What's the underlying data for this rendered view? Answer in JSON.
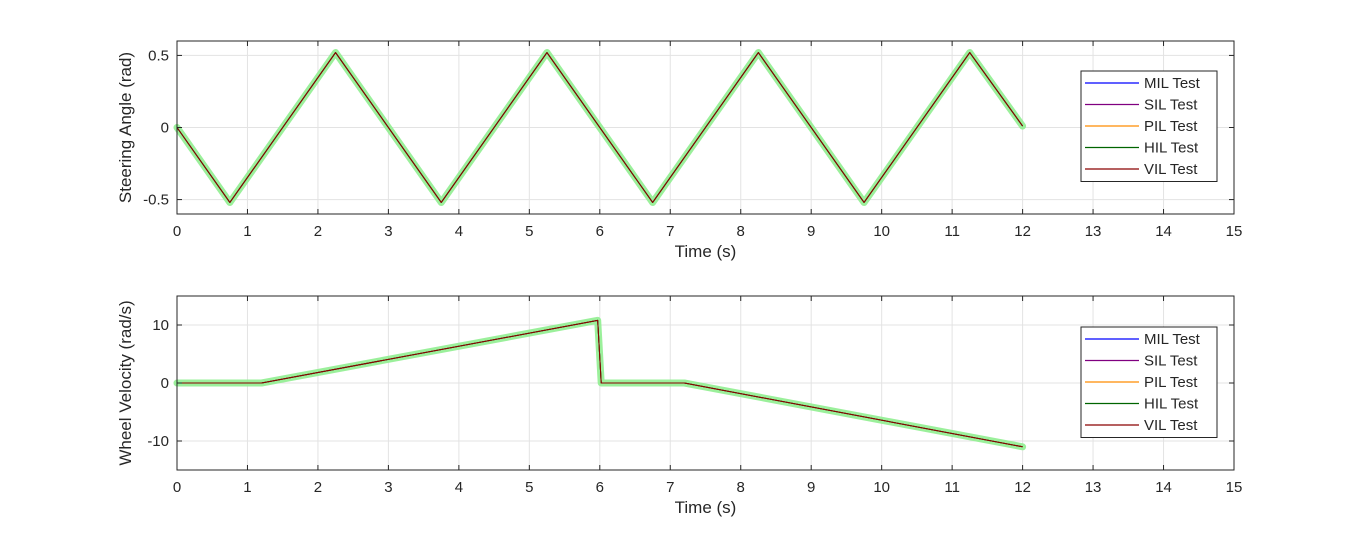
{
  "chart_data": [
    {
      "type": "line",
      "xlabel": "Time (s)",
      "ylabel": "Steering Angle (rad)",
      "xlim": [
        0,
        15
      ],
      "ylim": [
        -0.6,
        0.6
      ],
      "xticks": [
        0,
        1,
        2,
        3,
        4,
        5,
        6,
        7,
        8,
        9,
        10,
        11,
        12,
        13,
        14,
        15
      ],
      "xtick_labels": [
        "0",
        "1",
        "2",
        "3",
        "4",
        "5",
        "6",
        "7",
        "8",
        "9",
        "10",
        "11",
        "12",
        "13",
        "14",
        "15"
      ],
      "yticks": [
        -0.5,
        0,
        0.5
      ],
      "ytick_labels": [
        "-0.5",
        "0",
        "0.5"
      ],
      "grid": true,
      "legend_position": "right",
      "reference_band_color": "#90ee90",
      "x": [
        0,
        0.75,
        2.25,
        3.75,
        5.25,
        6.75,
        8.25,
        9.75,
        11.25,
        12
      ],
      "series": [
        {
          "name": "MIL Test",
          "color": "#0000ff",
          "values": [
            0,
            -0.52,
            0.52,
            -0.52,
            0.52,
            -0.52,
            0.52,
            -0.52,
            0.52,
            0.01
          ]
        },
        {
          "name": "SIL Test",
          "color": "#800080",
          "values": [
            0,
            -0.52,
            0.52,
            -0.52,
            0.52,
            -0.52,
            0.52,
            -0.52,
            0.52,
            0.01
          ]
        },
        {
          "name": "PIL Test",
          "color": "#ff8c00",
          "values": [
            0,
            -0.52,
            0.52,
            -0.52,
            0.52,
            -0.52,
            0.52,
            -0.52,
            0.52,
            0.01
          ]
        },
        {
          "name": "HIL Test",
          "color": "#006400",
          "values": [
            0,
            -0.52,
            0.52,
            -0.52,
            0.52,
            -0.52,
            0.52,
            -0.52,
            0.52,
            0.01
          ]
        },
        {
          "name": "VIL Test",
          "color": "#8b0000",
          "values": [
            0,
            -0.52,
            0.52,
            -0.52,
            0.52,
            -0.52,
            0.52,
            -0.52,
            0.52,
            0.01
          ]
        }
      ]
    },
    {
      "type": "line",
      "xlabel": "Time (s)",
      "ylabel": "Wheel Velocity (rad/s)",
      "xlim": [
        0,
        15
      ],
      "ylim": [
        -15,
        15
      ],
      "xticks": [
        0,
        1,
        2,
        3,
        4,
        5,
        6,
        7,
        8,
        9,
        10,
        11,
        12,
        13,
        14,
        15
      ],
      "xtick_labels": [
        "0",
        "1",
        "2",
        "3",
        "4",
        "5",
        "6",
        "7",
        "8",
        "9",
        "10",
        "11",
        "12",
        "13",
        "14",
        "15"
      ],
      "yticks": [
        -10,
        0,
        10
      ],
      "ytick_labels": [
        "-10",
        "0",
        "10"
      ],
      "grid": true,
      "legend_position": "right",
      "reference_band_color": "#90ee90",
      "x": [
        0,
        1.2,
        5.97,
        6.02,
        7.2,
        12
      ],
      "series": [
        {
          "name": "MIL Test",
          "color": "#0000ff",
          "values": [
            0,
            0,
            10.8,
            0,
            0,
            -11
          ]
        },
        {
          "name": "SIL Test",
          "color": "#800080",
          "values": [
            0,
            0,
            10.8,
            0,
            0,
            -11
          ]
        },
        {
          "name": "PIL Test",
          "color": "#ff8c00",
          "values": [
            0,
            0,
            10.8,
            0,
            0,
            -11
          ]
        },
        {
          "name": "HIL Test",
          "color": "#006400",
          "values": [
            0,
            0,
            10.8,
            0,
            0,
            -11
          ]
        },
        {
          "name": "VIL Test",
          "color": "#8b0000",
          "values": [
            0,
            0,
            10.8,
            0,
            0,
            -11
          ]
        }
      ]
    }
  ]
}
